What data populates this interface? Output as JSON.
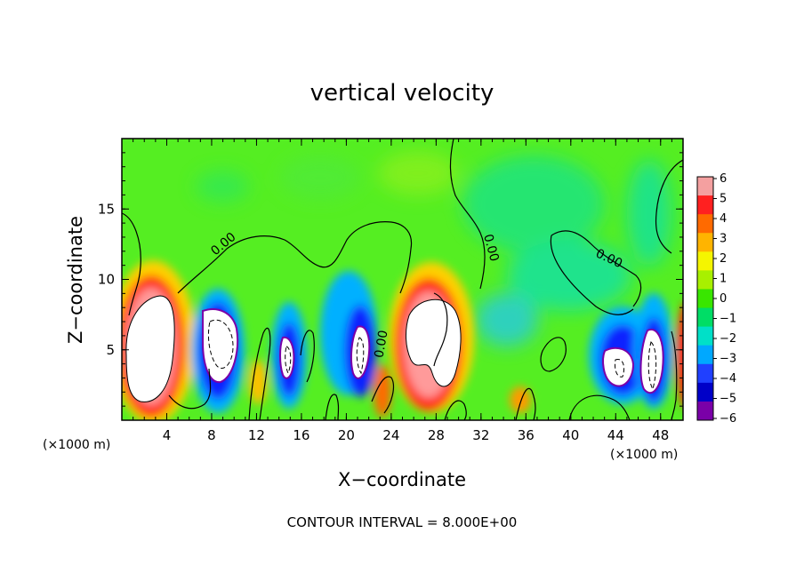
{
  "chart_data": {
    "type": "heatmap",
    "title": "vertical velocity",
    "xlabel": "X−coordinate",
    "ylabel": "Z−coordinate",
    "x_units": "(×1000 m)",
    "z_units": "(×1000 m)",
    "xlim": [
      0,
      50
    ],
    "ylim": [
      0,
      20
    ],
    "x_ticks": [
      4,
      8,
      12,
      16,
      20,
      24,
      28,
      32,
      36,
      40,
      44,
      48
    ],
    "y_ticks": [
      5,
      10,
      15
    ],
    "colorbar": {
      "ticks": [
        6,
        5,
        4,
        3,
        2,
        1,
        0,
        -1,
        -2,
        -3,
        -4,
        -5,
        -6
      ],
      "tick_labels": [
        "6",
        "5",
        "4",
        "3",
        "2",
        "1",
        "0",
        "−1",
        "−2",
        "−3",
        "−4",
        "−5",
        "−6"
      ],
      "colors": [
        "#f4a0a0",
        "#ff2020",
        "#ff6a00",
        "#ffb400",
        "#f5f500",
        "#a8f000",
        "#39e600",
        "#00dd66",
        "#00e0c8",
        "#00a8ff",
        "#2040ff",
        "#0000c8",
        "#7a00a8"
      ]
    },
    "background_color": "#55ee22",
    "contour_labels": [
      "0.00",
      "0.00",
      "0.00",
      "0.00"
    ],
    "footer": "CONTOUR INTERVAL = 8.000E+00"
  }
}
